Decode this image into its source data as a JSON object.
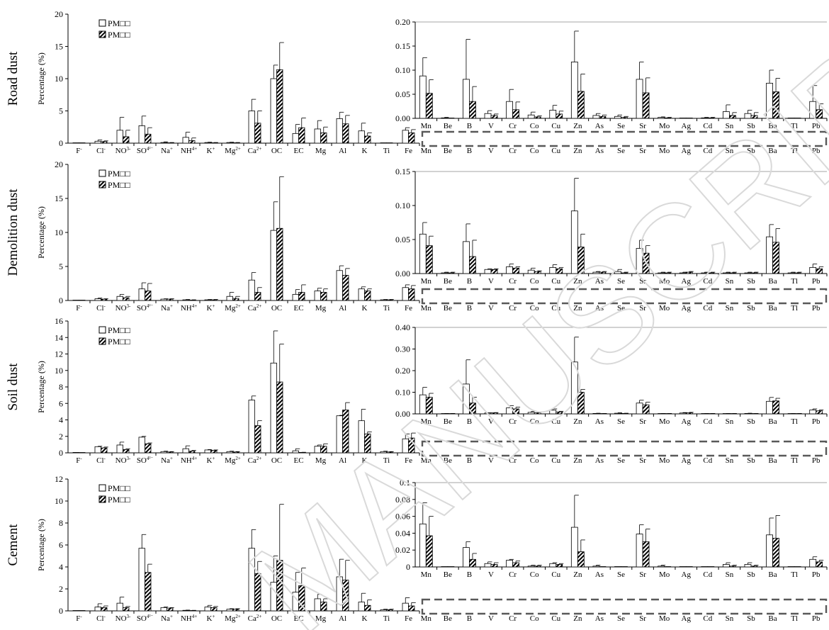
{
  "panel_labels": [
    "Road dust",
    "Demolition dust",
    "Soil dust",
    "Cement"
  ],
  "ylabel": "Percentage (%)",
  "legend": [
    "PM⁠□□",
    "PM□□"
  ],
  "legend_text": [
    "PM□□",
    "PM□□"
  ],
  "watermark_text": "MANUSCRIPT",
  "chart_data": [
    {
      "type": "bar",
      "panel": "Road dust",
      "ylabel": "Percentage (%)",
      "ylim": [
        0,
        20
      ],
      "yticks": [
        0,
        5,
        10,
        15,
        20
      ],
      "categories": [
        "F-",
        "Cl-",
        "NO3-",
        "SO42-",
        "Na+",
        "NH4+",
        "K+",
        "Mg2+",
        "Ca2+",
        "OC",
        "EC",
        "Mg",
        "Al",
        "K",
        "Ti",
        "Fe"
      ],
      "series": [
        {
          "name": "PM□□",
          "values": [
            0.05,
            0.3,
            2.0,
            2.7,
            0.1,
            0.9,
            0.1,
            0.1,
            5.0,
            10.0,
            1.5,
            2.2,
            3.8,
            1.9,
            0.05,
            2.0
          ],
          "errors": [
            0,
            0.2,
            2.0,
            1.5,
            0.1,
            0.8,
            0.05,
            0.05,
            1.8,
            2.1,
            1.4,
            1.3,
            1.0,
            1.2,
            0,
            0.4
          ]
        },
        {
          "name": "PM□□",
          "values": [
            0.05,
            0.25,
            1.0,
            1.4,
            0.05,
            0.4,
            0.05,
            0.05,
            3.1,
            11.4,
            2.4,
            1.6,
            3.0,
            1.1,
            0.05,
            1.6
          ],
          "errors": [
            0,
            0.1,
            1.0,
            1.0,
            0.05,
            0.4,
            0.05,
            0.05,
            1.9,
            4.2,
            1.5,
            0.9,
            1.3,
            0.5,
            0,
            0.5
          ]
        }
      ],
      "inset": {
        "ylim": [
          0,
          0.2
        ],
        "yticks": [
          "0.00",
          "0.05",
          "0.10",
          "0.15",
          "0.20"
        ],
        "categories": [
          "Mn",
          "Be",
          "B",
          "V",
          "Cr",
          "Co",
          "Cu",
          "Zn",
          "As",
          "Se",
          "Sr",
          "Mo",
          "Ag",
          "Cd",
          "Sn",
          "Sb",
          "Ba",
          "Tl",
          "Pb"
        ],
        "series": [
          {
            "name": "PM□□",
            "values": [
              0.088,
              0.001,
              0.081,
              0.01,
              0.035,
              0.007,
              0.017,
              0.117,
              0.006,
              0.004,
              0.081,
              0.002,
              0.0,
              0.001,
              0.014,
              0.01,
              0.073,
              0.0,
              0.035
            ],
            "errors": [
              0.038,
              0.001,
              0.083,
              0.006,
              0.025,
              0.006,
              0.01,
              0.064,
              0.004,
              0.003,
              0.036,
              0.001,
              0,
              0.001,
              0.014,
              0.007,
              0.027,
              0,
              0.033
            ]
          },
          {
            "name": "PM□□",
            "values": [
              0.052,
              0.0,
              0.035,
              0.006,
              0.018,
              0.003,
              0.009,
              0.056,
              0.004,
              0.002,
              0.053,
              0.001,
              0.0,
              0.001,
              0.006,
              0.006,
              0.055,
              0.0,
              0.018
            ],
            "errors": [
              0.028,
              0,
              0.031,
              0.003,
              0.016,
              0.002,
              0.006,
              0.036,
              0.003,
              0.002,
              0.031,
              0.001,
              0,
              0.001,
              0.006,
              0.006,
              0.028,
              0,
              0.012
            ]
          }
        ]
      }
    },
    {
      "type": "bar",
      "panel": "Demolition dust",
      "ylabel": "Percentage (%)",
      "ylim": [
        0,
        20
      ],
      "yticks": [
        0,
        5,
        10,
        15,
        20
      ],
      "categories": [
        "F-",
        "Cl-",
        "NO3-",
        "SO42-",
        "Na+",
        "NH4+",
        "K+",
        "Mg2+",
        "Ca2+",
        "OC",
        "EC",
        "Mg",
        "Al",
        "K",
        "Ti",
        "Fe"
      ],
      "series": [
        {
          "name": "PM□□",
          "values": [
            0.05,
            0.25,
            0.6,
            1.7,
            0.2,
            0.1,
            0.1,
            0.6,
            3.0,
            10.3,
            0.9,
            1.4,
            4.4,
            1.7,
            0.1,
            1.9
          ],
          "errors": [
            0,
            0.1,
            0.3,
            0.9,
            0.05,
            0.05,
            0.05,
            0.6,
            1.1,
            4.2,
            0.7,
            0.4,
            0.7,
            0.3,
            0.05,
            0.4
          ]
        },
        {
          "name": "PM□□",
          "values": [
            0.02,
            0.2,
            0.4,
            1.4,
            0.2,
            0.05,
            0.1,
            0.3,
            1.2,
            10.6,
            1.2,
            1.2,
            3.7,
            1.4,
            0.1,
            1.7
          ],
          "errors": [
            0,
            0.05,
            0.2,
            1.1,
            0.05,
            0.05,
            0.05,
            0.3,
            0.7,
            7.6,
            1.1,
            0.5,
            1.0,
            0.3,
            0.05,
            0.5
          ]
        }
      ],
      "inset": {
        "ylim": [
          0,
          0.15
        ],
        "yticks": [
          "0.00",
          "0.05",
          "0.10",
          "0.15"
        ],
        "categories": [
          "Mn",
          "Be",
          "B",
          "V",
          "Cr",
          "Co",
          "Cu",
          "Zn",
          "As",
          "Se",
          "Sr",
          "Mo",
          "Ag",
          "Cd",
          "Sn",
          "Sb",
          "Ba",
          "Tl",
          "Pb"
        ],
        "series": [
          {
            "name": "PM□□",
            "values": [
              0.058,
              0.001,
              0.047,
              0.006,
              0.01,
              0.005,
              0.009,
              0.092,
              0.002,
              0.003,
              0.037,
              0.001,
              0.001,
              0.001,
              0.001,
              0.001,
              0.054,
              0.001,
              0.009
            ],
            "errors": [
              0.017,
              0.001,
              0.026,
              0.001,
              0.004,
              0.003,
              0.004,
              0.048,
              0.001,
              0.003,
              0.012,
              0.001,
              0.001,
              0.001,
              0.001,
              0.001,
              0.018,
              0.001,
              0.005
            ]
          },
          {
            "name": "PM□□",
            "values": [
              0.041,
              0.001,
              0.025,
              0.006,
              0.008,
              0.003,
              0.007,
              0.039,
              0.002,
              0.001,
              0.03,
              0.001,
              0.002,
              0.001,
              0.001,
              0.001,
              0.046,
              0.001,
              0.007
            ],
            "errors": [
              0.014,
              0.001,
              0.024,
              0.001,
              0.002,
              0.001,
              0.002,
              0.019,
              0.001,
              0.001,
              0.011,
              0.001,
              0.001,
              0.001,
              0.001,
              0.001,
              0.02,
              0.001,
              0.003
            ]
          }
        ]
      }
    },
    {
      "type": "bar",
      "panel": "Soil dust",
      "ylabel": "Percentage (%)",
      "ylim": [
        0,
        16
      ],
      "yticks": [
        0,
        2,
        4,
        6,
        8,
        10,
        12,
        14,
        16
      ],
      "categories": [
        "F-",
        "Cl-",
        "NO3-",
        "SO42-",
        "Na+",
        "NH4+",
        "K+",
        "Mg2+",
        "Ca2+",
        "OC",
        "EC",
        "Mg",
        "Al",
        "K",
        "Ti",
        "Fe"
      ],
      "series": [
        {
          "name": "PM□□",
          "values": [
            0.05,
            0.75,
            0.95,
            1.9,
            0.15,
            0.5,
            0.35,
            0.15,
            6.4,
            10.9,
            0.25,
            0.8,
            4.5,
            3.9,
            0.15,
            1.7
          ],
          "errors": [
            0,
            0.05,
            0.35,
            0.1,
            0.05,
            0.35,
            0.05,
            0.05,
            0.5,
            3.9,
            0.25,
            0.15,
            0.05,
            1.4,
            0.05,
            0.6
          ]
        },
        {
          "name": "PM□□",
          "values": [
            0.02,
            0.6,
            0.4,
            1.1,
            0.1,
            0.2,
            0.3,
            0.1,
            3.3,
            8.6,
            0.05,
            0.8,
            5.2,
            2.3,
            0.1,
            1.8
          ],
          "errors": [
            0,
            0.1,
            0.1,
            0.1,
            0.05,
            0.1,
            0.05,
            0.05,
            0.6,
            4.6,
            0.02,
            0.3,
            0.9,
            0.25,
            0.05,
            0.6
          ]
        }
      ],
      "inset": {
        "ylim": [
          0,
          0.4
        ],
        "yticks": [
          "0.00",
          "0.10",
          "0.20",
          "0.30",
          "0.40"
        ],
        "categories": [
          "Mn",
          "Be",
          "B",
          "V",
          "Cr",
          "Co",
          "Cu",
          "Zn",
          "As",
          "Se",
          "Sr",
          "Mo",
          "Ag",
          "Cd",
          "Sn",
          "Sb",
          "Ba",
          "Tl",
          "Pb"
        ],
        "series": [
          {
            "name": "PM□□",
            "values": [
              0.088,
              0.001,
              0.138,
              0.004,
              0.028,
              0.007,
              0.017,
              0.24,
              0.002,
              0.003,
              0.05,
              0.001,
              0.004,
              0.001,
              0.001,
              0.002,
              0.058,
              0.001,
              0.018
            ],
            "errors": [
              0.035,
              0.001,
              0.112,
              0.001,
              0.01,
              0.004,
              0.006,
              0.115,
              0.001,
              0.002,
              0.013,
              0.001,
              0.002,
              0.001,
              0.001,
              0.001,
              0.018,
              0.001,
              0.005
            ]
          },
          {
            "name": "PM□□",
            "values": [
              0.077,
              0.001,
              0.05,
              0.005,
              0.023,
              0.005,
              0.009,
              0.1,
              0.001,
              0.002,
              0.042,
              0.001,
              0.005,
              0.001,
              0.001,
              0.001,
              0.06,
              0.001,
              0.014
            ],
            "errors": [
              0.018,
              0.001,
              0.027,
              0.001,
              0.008,
              0.002,
              0.003,
              0.013,
              0.001,
              0.001,
              0.012,
              0.001,
              0.002,
              0.001,
              0.001,
              0.001,
              0.012,
              0.001,
              0.004
            ]
          }
        ]
      }
    },
    {
      "type": "bar",
      "panel": "Cement",
      "ylabel": "Percentage (%)",
      "ylim": [
        0,
        12
      ],
      "yticks": [
        0,
        2,
        4,
        6,
        8,
        10,
        12
      ],
      "categories": [
        "F-",
        "Cl-",
        "NO3-",
        "SO42-",
        "Na+",
        "NH4+",
        "K+",
        "Mg2+",
        "Ca2+",
        "OC",
        "EC",
        "Mg",
        "Al",
        "K",
        "Ti",
        "Fe"
      ],
      "series": [
        {
          "name": "PM□□",
          "values": [
            0.02,
            0.35,
            0.7,
            5.7,
            0.3,
            0.05,
            0.35,
            0.15,
            5.7,
            2.6,
            1.7,
            1.1,
            3.1,
            0.8,
            0.1,
            0.7
          ],
          "errors": [
            0,
            0.3,
            0.55,
            1.25,
            0.05,
            0.02,
            0.15,
            0.05,
            1.7,
            2.4,
            1.8,
            0.4,
            1.6,
            0.8,
            0.05,
            0.5
          ]
        },
        {
          "name": "PM□□",
          "values": [
            0.02,
            0.3,
            0.3,
            3.5,
            0.25,
            0.03,
            0.3,
            0.15,
            3.4,
            4.6,
            2.3,
            0.8,
            2.8,
            0.5,
            0.1,
            0.45
          ],
          "errors": [
            0,
            0.15,
            0.1,
            0.75,
            0.05,
            0.02,
            0.1,
            0.05,
            1.1,
            5.1,
            1.6,
            0.3,
            1.8,
            0.5,
            0.05,
            0.3
          ]
        }
      ],
      "inset": {
        "ylim": [
          0,
          0.1
        ],
        "yticks": [
          "0",
          "0.02",
          "0.04",
          "0.06",
          "0.08",
          "0.1"
        ],
        "categories": [
          "Mn",
          "Be",
          "B",
          "V",
          "Cr",
          "Co",
          "Cu",
          "Zn",
          "As",
          "Se",
          "Sr",
          "Mo",
          "Ag",
          "Cd",
          "Sn",
          "Sb",
          "Ba",
          "Tl",
          "Pb"
        ],
        "series": [
          {
            "name": "PM□□",
            "values": [
              0.051,
              0.0,
              0.023,
              0.004,
              0.008,
              0.001,
              0.004,
              0.047,
              0.001,
              0.0,
              0.039,
              0.001,
              0.0,
              0.0,
              0.003,
              0.003,
              0.038,
              0.0,
              0.009
            ],
            "errors": [
              0.025,
              0,
              0.007,
              0.002,
              0.001,
              0.001,
              0.001,
              0.038,
              0.001,
              0,
              0.011,
              0.001,
              0,
              0,
              0.002,
              0.002,
              0.02,
              0,
              0.003
            ]
          },
          {
            "name": "PM□□",
            "values": [
              0.037,
              0.0,
              0.009,
              0.003,
              0.005,
              0.001,
              0.003,
              0.018,
              0.0,
              0.0,
              0.03,
              0.0,
              0.0,
              0.0,
              0.001,
              0.001,
              0.034,
              0.0,
              0.006
            ],
            "errors": [
              0.023,
              0,
              0.007,
              0.002,
              0.002,
              0.001,
              0.001,
              0.014,
              0,
              0,
              0.015,
              0,
              0,
              0,
              0.001,
              0.001,
              0.027,
              0,
              0.002
            ]
          }
        ]
      }
    }
  ]
}
